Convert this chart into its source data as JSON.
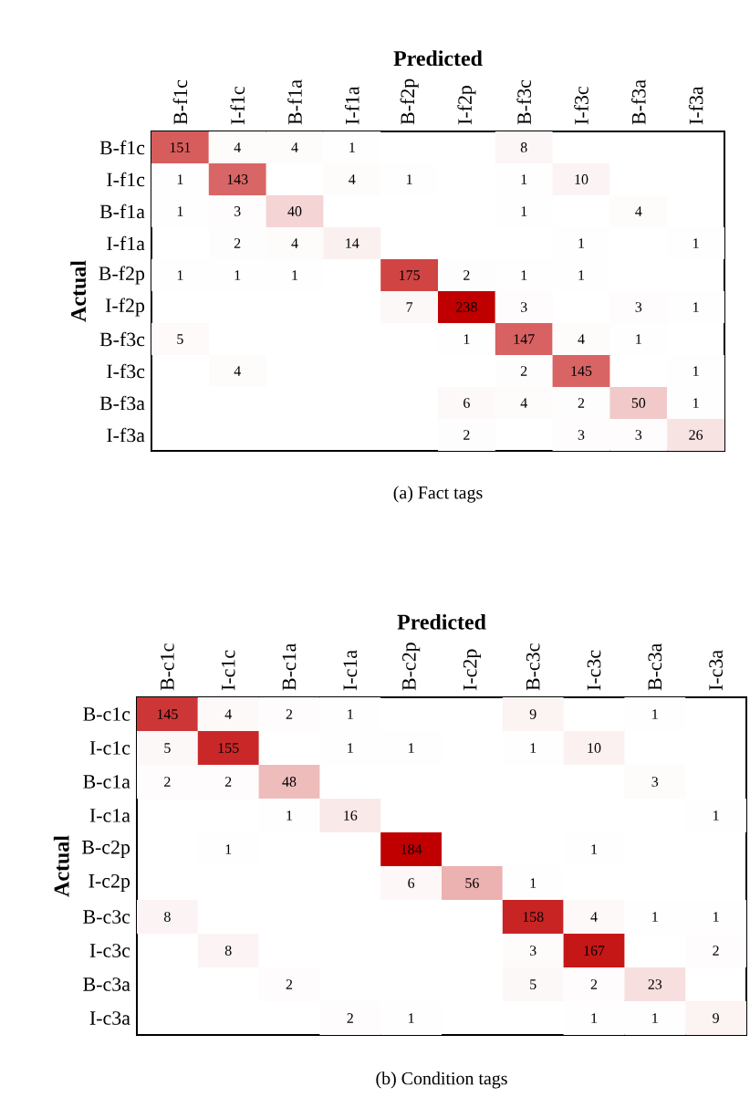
{
  "chart_data": [
    {
      "type": "heatmap",
      "xlabel": "Predicted",
      "ylabel": "Actual",
      "annotations": [
        "(a)  Fact tags"
      ],
      "data_labels": true,
      "categories": [
        "B-f1c",
        "I-f1c",
        "B-f1a",
        "I-f1a",
        "B-f2p",
        "I-f2p",
        "B-f3c",
        "I-f3c",
        "B-f3a",
        "I-f3a"
      ],
      "y_categories": [
        "B-f1c",
        "I-f1c",
        "B-f1a",
        "I-f1a",
        "B-f2p",
        "I-f2p",
        "B-f3c",
        "I-f3c",
        "B-f3a",
        "I-f3a"
      ],
      "cells": [
        [
          151,
          4,
          4,
          1,
          null,
          null,
          8,
          null,
          null,
          null
        ],
        [
          1,
          143,
          null,
          4,
          1,
          null,
          1,
          10,
          null,
          null
        ],
        [
          1,
          3,
          40,
          null,
          null,
          null,
          1,
          null,
          4,
          null
        ],
        [
          null,
          2,
          4,
          14,
          null,
          null,
          null,
          1,
          null,
          1
        ],
        [
          1,
          1,
          1,
          null,
          175,
          2,
          1,
          1,
          null,
          null
        ],
        [
          null,
          null,
          null,
          null,
          7,
          238,
          3,
          null,
          3,
          1
        ],
        [
          5,
          null,
          null,
          null,
          null,
          1,
          147,
          4,
          1,
          null
        ],
        [
          null,
          4,
          null,
          null,
          null,
          null,
          2,
          145,
          null,
          1
        ],
        [
          null,
          null,
          null,
          null,
          null,
          6,
          4,
          2,
          50,
          1
        ],
        [
          null,
          null,
          null,
          null,
          null,
          2,
          null,
          3,
          3,
          26
        ]
      ]
    },
    {
      "type": "heatmap",
      "xlabel": "Predicted",
      "ylabel": "Actual",
      "annotations": [
        "(b)  Condition tags"
      ],
      "data_labels": true,
      "categories": [
        "B-c1c",
        "I-c1c",
        "B-c1a",
        "I-c1a",
        "B-c2p",
        "I-c2p",
        "B-c3c",
        "I-c3c",
        "B-c3a",
        "I-c3a"
      ],
      "y_categories": [
        "B-c1c",
        "I-c1c",
        "B-c1a",
        "I-c1a",
        "B-c2p",
        "I-c2p",
        "B-c3c",
        "I-c3c",
        "B-c3a",
        "I-c3a"
      ],
      "cells": [
        [
          145,
          4,
          2,
          1,
          null,
          null,
          9,
          null,
          1,
          null
        ],
        [
          5,
          155,
          null,
          1,
          1,
          null,
          1,
          10,
          null,
          null
        ],
        [
          2,
          2,
          48,
          null,
          null,
          null,
          null,
          null,
          3,
          null
        ],
        [
          null,
          null,
          1,
          16,
          null,
          null,
          null,
          null,
          null,
          1
        ],
        [
          null,
          1,
          null,
          null,
          184,
          null,
          null,
          1,
          null,
          null
        ],
        [
          null,
          null,
          null,
          null,
          6,
          56,
          1,
          null,
          null,
          null
        ],
        [
          8,
          null,
          null,
          null,
          null,
          null,
          158,
          4,
          1,
          1
        ],
        [
          null,
          8,
          null,
          null,
          null,
          null,
          3,
          167,
          null,
          2
        ],
        [
          null,
          null,
          2,
          null,
          null,
          null,
          5,
          2,
          23,
          null
        ],
        [
          null,
          null,
          null,
          2,
          1,
          null,
          null,
          1,
          1,
          9
        ]
      ]
    }
  ]
}
